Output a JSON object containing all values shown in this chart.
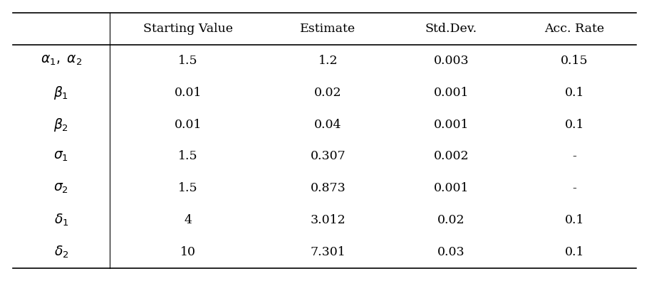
{
  "col_headers": [
    "Starting Value",
    "Estimate",
    "Std.Dev.",
    "Acc. Rate"
  ],
  "row_labels_latex": [
    "$\\alpha_1,\\ \\alpha_2$",
    "$\\beta_1$",
    "$\\beta_2$",
    "$\\sigma_1$",
    "$\\sigma_2$",
    "$\\delta_1$",
    "$\\delta_2$"
  ],
  "rows": [
    [
      "1.5",
      "1.2",
      "0.003",
      "0.15"
    ],
    [
      "0.01",
      "0.02",
      "0.001",
      "0.1"
    ],
    [
      "0.01",
      "0.04",
      "0.001",
      "0.1"
    ],
    [
      "1.5",
      "0.307",
      "0.002",
      "-"
    ],
    [
      "1.5",
      "0.873",
      "0.001",
      "-"
    ],
    [
      "4",
      "3.012",
      "0.02",
      "0.1"
    ],
    [
      "10",
      "7.301",
      "0.03",
      "0.1"
    ]
  ],
  "background_color": "#ffffff",
  "line_color": "#000000",
  "text_color": "#000000",
  "header_fontsize": 12.5,
  "cell_fontsize": 12.5,
  "row_label_fontsize": 13.5,
  "fig_width": 9.11,
  "fig_height": 3.95,
  "dpi": 100
}
